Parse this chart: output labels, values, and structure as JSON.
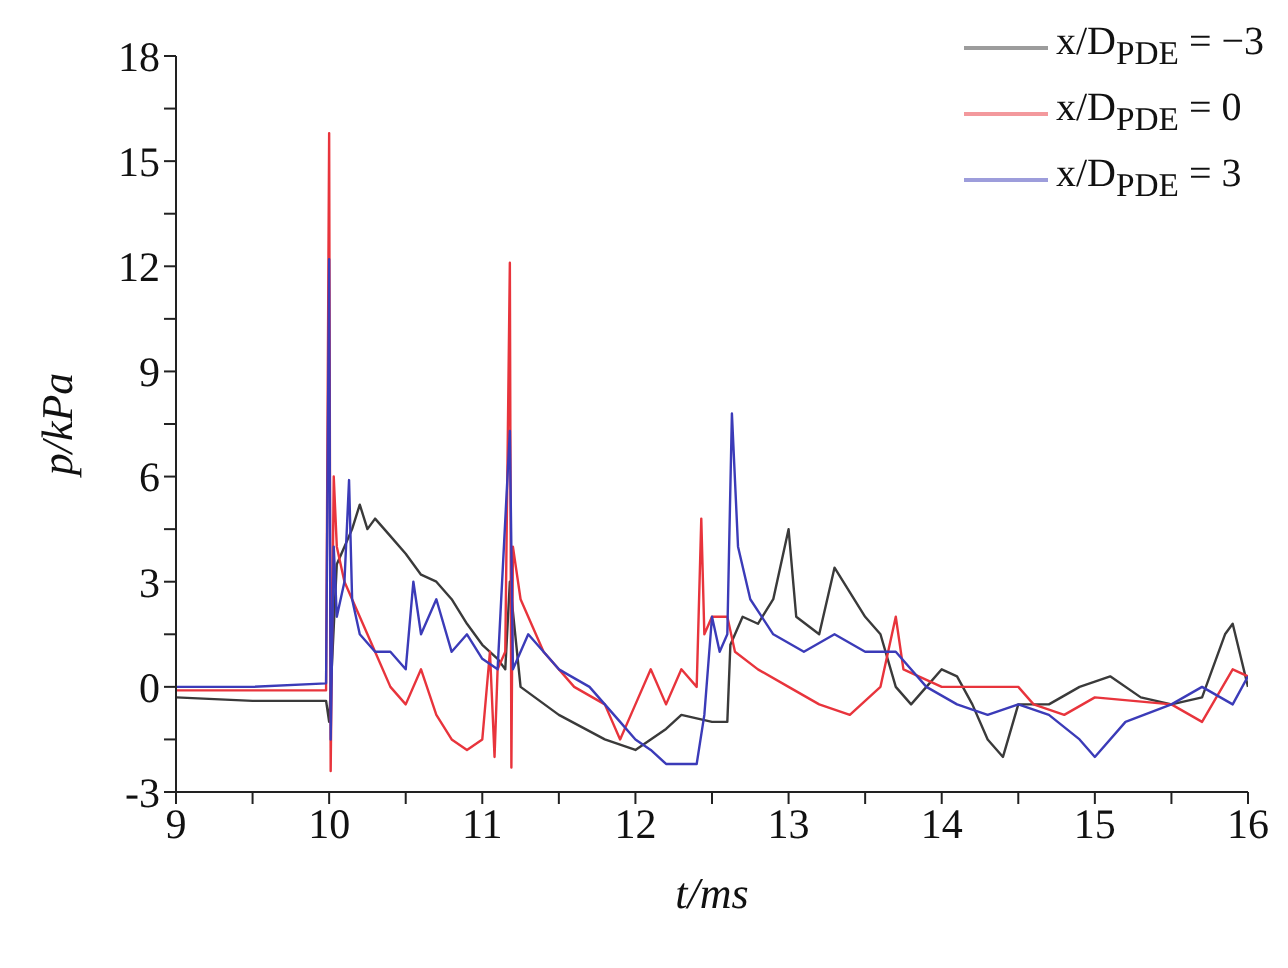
{
  "chart_data": {
    "type": "line",
    "xlabel": "t/ms",
    "ylabel": "p/kPa",
    "xlim": [
      9,
      16
    ],
    "ylim": [
      -3,
      18
    ],
    "xticks": [
      9,
      {
        "value": 9.5,
        "label": null
      },
      10,
      {
        "value": 10.5,
        "label": null
      },
      11,
      {
        "value": 11.5,
        "label": null
      },
      12,
      {
        "value": 12.5,
        "label": null
      },
      13,
      {
        "value": 13.5,
        "label": null
      },
      14,
      {
        "value": 14.5,
        "label": null
      },
      15,
      {
        "value": 15.5,
        "label": null
      },
      16
    ],
    "yticks": [
      -3,
      {
        "value": -1.5,
        "label": null
      },
      0,
      {
        "value": 1.5,
        "label": null
      },
      3,
      {
        "value": 4.5,
        "label": null
      },
      6,
      {
        "value": 7.5,
        "label": null
      },
      9,
      {
        "value": 10.5,
        "label": null
      },
      12,
      {
        "value": 13.5,
        "label": null
      },
      15,
      {
        "value": 16.5,
        "label": null
      },
      18
    ],
    "legend": "top right",
    "grid": false,
    "series": [
      {
        "name": "x/D$_{PDE}$ = −3",
        "color": "#3a3a3a",
        "x": [
          9,
          9.5,
          9.98,
          10,
          10.05,
          10.1,
          10.15,
          10.2,
          10.25,
          10.3,
          10.4,
          10.5,
          10.6,
          10.7,
          10.8,
          10.9,
          11,
          11.1,
          11.15,
          11.18,
          11.25,
          11.5,
          11.8,
          12,
          12.2,
          12.3,
          12.5,
          12.6,
          12.62,
          12.7,
          12.8,
          12.9,
          13,
          13.05,
          13.2,
          13.3,
          13.5,
          13.6,
          13.7,
          13.8,
          13.9,
          14,
          14.1,
          14.2,
          14.3,
          14.4,
          14.5,
          14.7,
          14.9,
          15.1,
          15.3,
          15.5,
          15.7,
          15.85,
          15.9,
          16
        ],
        "values": [
          -0.3,
          -0.4,
          -0.4,
          -1,
          3.5,
          4,
          4.5,
          5.2,
          4.5,
          4.8,
          4.3,
          3.8,
          3.2,
          3,
          2.5,
          1.8,
          1.2,
          0.8,
          0.5,
          3,
          0,
          -0.8,
          -1.5,
          -1.8,
          -1.2,
          -0.8,
          -1,
          -1,
          1.2,
          2,
          1.8,
          2.5,
          4.5,
          2,
          1.5,
          3.4,
          2,
          1.5,
          0,
          -0.5,
          0,
          0.5,
          0.3,
          -0.5,
          -1.5,
          -2,
          -0.5,
          -0.5,
          0,
          0.3,
          -0.3,
          -0.5,
          -0.3,
          1.5,
          1.8,
          0
        ]
      },
      {
        "name": "x/D$_{PDE}$ = 0",
        "color": "#e8343c",
        "x": [
          9,
          9.5,
          9.98,
          10,
          10.01,
          10.03,
          10.05,
          10.1,
          10.2,
          10.3,
          10.4,
          10.5,
          10.6,
          10.7,
          10.8,
          10.9,
          11,
          11.05,
          11.08,
          11.1,
          11.15,
          11.18,
          11.19,
          11.2,
          11.25,
          11.4,
          11.6,
          11.8,
          11.9,
          12,
          12.1,
          12.2,
          12.3,
          12.4,
          12.43,
          12.45,
          12.5,
          12.6,
          12.65,
          12.8,
          13,
          13.2,
          13.4,
          13.6,
          13.7,
          13.75,
          14,
          14.5,
          14.6,
          14.8,
          15,
          15.5,
          15.7,
          15.9,
          16
        ],
        "values": [
          -0.1,
          -0.1,
          -0.1,
          15.8,
          -2.4,
          6,
          4,
          3,
          2,
          1,
          0,
          -0.5,
          0.5,
          -0.8,
          -1.5,
          -1.8,
          -1.5,
          1,
          -2,
          0.5,
          1,
          12.1,
          -2.3,
          4,
          2.5,
          1,
          0,
          -0.5,
          -1.5,
          -0.5,
          0.5,
          -0.5,
          0.5,
          0,
          4.8,
          1.5,
          2,
          2,
          1,
          0.5,
          0,
          -0.5,
          -0.8,
          0,
          2,
          0.5,
          0,
          0,
          -0.5,
          -0.8,
          -0.3,
          -0.5,
          -1,
          0.5,
          0.3
        ]
      },
      {
        "name": "x/D$_{PDE}$ = 3",
        "color": "#3b3bb8",
        "x": [
          9,
          9.5,
          9.98,
          10,
          10.01,
          10.03,
          10.05,
          10.1,
          10.13,
          10.15,
          10.2,
          10.3,
          10.4,
          10.5,
          10.55,
          10.6,
          10.7,
          10.8,
          10.9,
          11,
          11.1,
          11.18,
          11.2,
          11.3,
          11.5,
          11.7,
          11.9,
          12,
          12.1,
          12.2,
          12.4,
          12.45,
          12.5,
          12.55,
          12.6,
          12.63,
          12.67,
          12.75,
          12.9,
          13.1,
          13.3,
          13.5,
          13.7,
          13.9,
          14.1,
          14.3,
          14.5,
          14.7,
          14.9,
          15,
          15.2,
          15.5,
          15.7,
          15.9,
          16
        ],
        "values": [
          0,
          0,
          0.1,
          12.2,
          -1.5,
          4,
          2,
          3,
          5.9,
          2.5,
          1.5,
          1,
          1,
          0.5,
          3,
          1.5,
          2.5,
          1,
          1.5,
          0.8,
          0.5,
          7.3,
          0.5,
          1.5,
          0.5,
          0,
          -1,
          -1.5,
          -1.8,
          -2.2,
          -2.2,
          -0.8,
          2,
          1,
          1.5,
          7.8,
          4,
          2.5,
          1.5,
          1,
          1.5,
          1,
          1,
          0,
          -0.5,
          -0.8,
          -0.5,
          -0.8,
          -1.5,
          -2,
          -1,
          -0.5,
          0,
          -0.5,
          0.3
        ]
      }
    ]
  }
}
